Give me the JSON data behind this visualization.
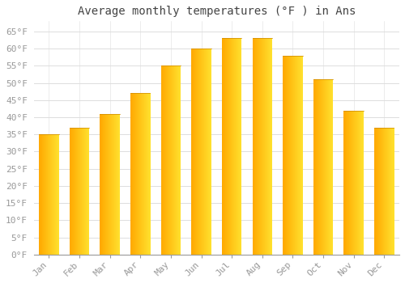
{
  "title": "Average monthly temperatures (°F ) in Ans",
  "months": [
    "Jan",
    "Feb",
    "Mar",
    "Apr",
    "May",
    "Jun",
    "Jul",
    "Aug",
    "Sep",
    "Oct",
    "Nov",
    "Dec"
  ],
  "values": [
    35,
    37,
    41,
    47,
    55,
    60,
    63,
    63,
    58,
    51,
    42,
    37
  ],
  "bar_color_left": "#F5A800",
  "bar_color_right": "#FFD060",
  "bar_color_top": "#E89000",
  "background_color": "#FFFFFF",
  "grid_color": "#DDDDDD",
  "ylim": [
    0,
    68
  ],
  "yticks": [
    0,
    5,
    10,
    15,
    20,
    25,
    30,
    35,
    40,
    45,
    50,
    55,
    60,
    65
  ],
  "ytick_labels": [
    "0°F",
    "5°F",
    "10°F",
    "15°F",
    "20°F",
    "25°F",
    "30°F",
    "35°F",
    "40°F",
    "45°F",
    "50°F",
    "55°F",
    "60°F",
    "65°F"
  ],
  "title_fontsize": 10,
  "tick_fontsize": 8,
  "tick_color": "#999999",
  "font_family": "monospace",
  "bar_width": 0.65
}
